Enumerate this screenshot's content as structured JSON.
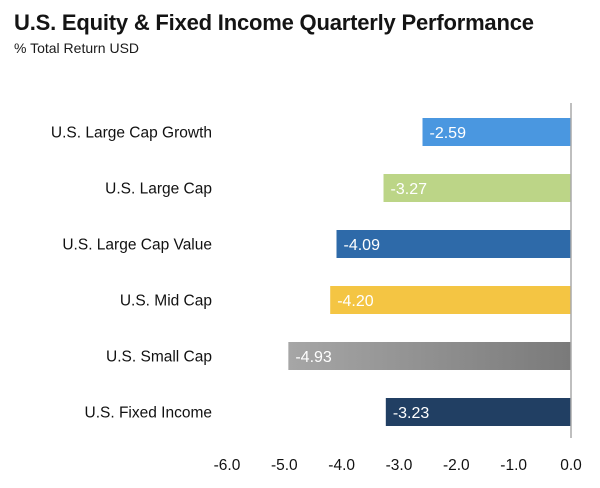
{
  "chart_data": {
    "type": "bar",
    "orientation": "horizontal",
    "title": "U.S. Equity & Fixed Income Quarterly Performance",
    "subtitle": "% Total Return USD",
    "categories": [
      "U.S. Large Cap Growth",
      "U.S. Large Cap",
      "U.S. Large Cap Value",
      "U.S. Mid Cap",
      "U.S. Small Cap",
      "U.S. Fixed Income"
    ],
    "values": [
      -2.59,
      -3.27,
      -4.09,
      -4.2,
      -4.93,
      -3.23
    ],
    "value_labels": [
      "-2.59",
      "-3.27",
      "-4.09",
      "-4.20",
      "-4.93",
      "-3.23"
    ],
    "colors": [
      "#4a97e0",
      "#bcd587",
      "#2e6aa9",
      "#f4c543",
      "#a6a6a6",
      "#213f63"
    ],
    "gradient_end_colors": [
      null,
      null,
      null,
      null,
      "#7a7a7a",
      null
    ],
    "x_ticks": [
      -6.0,
      -5.0,
      -4.0,
      -3.0,
      -2.0,
      -1.0,
      0.0
    ],
    "x_tick_labels": [
      "-6.0",
      "-5.0",
      "-4.0",
      "-3.0",
      "-2.0",
      "-1.0",
      "0.0"
    ],
    "xlim": [
      -6.0,
      0.0
    ],
    "xlabel": "",
    "ylabel": "",
    "grid": false,
    "legend": "none",
    "label_color": "#ffffff",
    "zero_line_color": "#aaaaaa"
  }
}
